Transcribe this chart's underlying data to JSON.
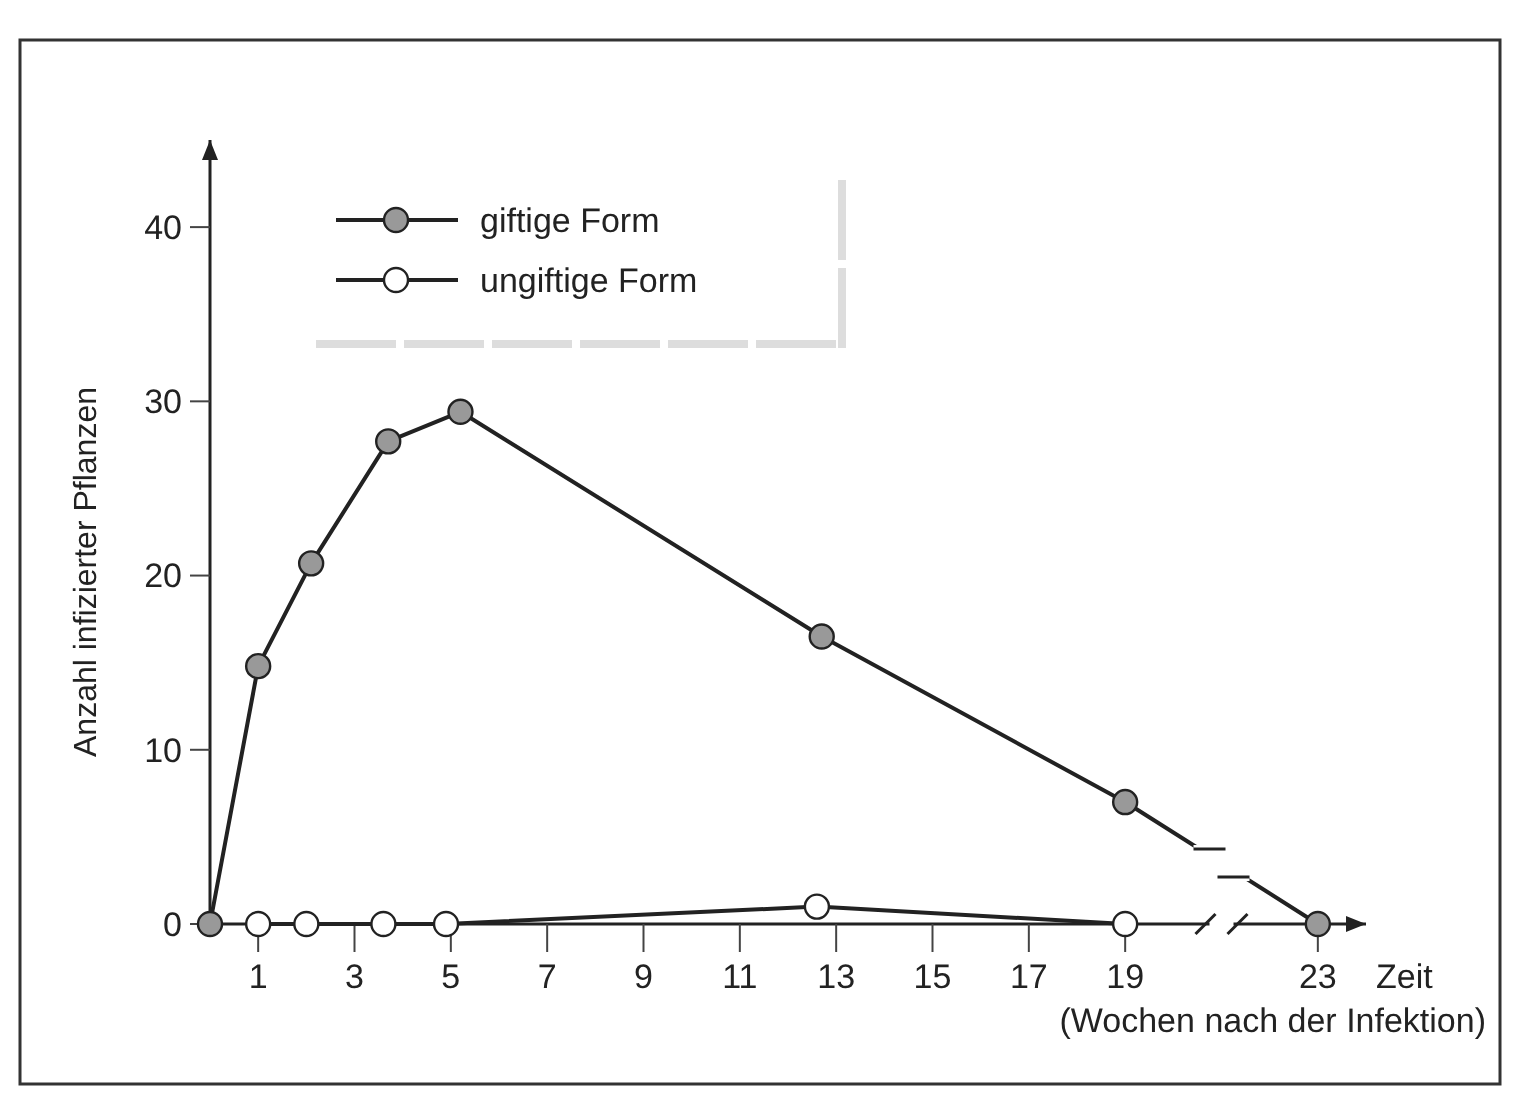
{
  "chart_data": {
    "type": "line",
    "xlabel": "Zeit",
    "ylabel": "Anzahl infizierter Pflanzen",
    "annotations": [
      "(Wochen nach der Infektion)"
    ],
    "xlim": [
      0,
      24
    ],
    "ylim": [
      0,
      45
    ],
    "xticks": [
      1,
      3,
      5,
      7,
      9,
      11,
      13,
      15,
      17,
      19,
      23
    ],
    "yticks": [
      0,
      10,
      20,
      30,
      40
    ],
    "legend": "top left",
    "marker": "circle",
    "grid": false,
    "series": [
      {
        "name": "giftige Form",
        "color": "#999999",
        "x": [
          0,
          1,
          2.1,
          3.7,
          5.2,
          12.7,
          19,
          23
        ],
        "values": [
          0,
          14.8,
          20.7,
          27.7,
          29.4,
          16.5,
          7,
          0
        ]
      },
      {
        "name": "ungiftige Form",
        "color": "#ffffff",
        "x": [
          1,
          2,
          3.6,
          4.9,
          12.6,
          19
        ],
        "values": [
          0,
          0,
          0,
          0,
          1,
          0
        ]
      }
    ]
  }
}
